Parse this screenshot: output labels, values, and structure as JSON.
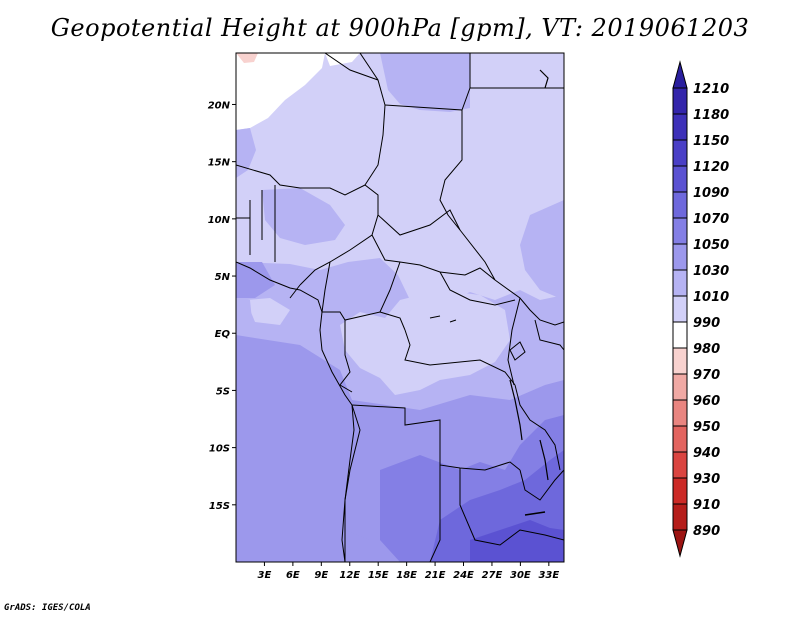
{
  "title": "Geopotential Height at 900hPa [gpm], VT: 2019061203",
  "credit": "GrADS: IGES/COLA",
  "map": {
    "lat_labels": [
      "20N",
      "15N",
      "10N",
      "5N",
      "EQ",
      "5S",
      "10S",
      "15S"
    ],
    "lat_values": [
      20,
      15,
      10,
      5,
      0,
      -5,
      -10,
      -15
    ],
    "lon_labels": [
      "3E",
      "6E",
      "9E",
      "12E",
      "15E",
      "18E",
      "21E",
      "24E",
      "27E",
      "30E",
      "33E"
    ],
    "lon_values": [
      3,
      6,
      9,
      12,
      15,
      18,
      21,
      24,
      27,
      30,
      33
    ],
    "lon_range": [
      0,
      34.6
    ],
    "lat_range": [
      -20,
      24.5
    ]
  },
  "colorbar": {
    "labels": [
      "1210",
      "1180",
      "1150",
      "1120",
      "1090",
      "1070",
      "1050",
      "1030",
      "1010",
      "990",
      "980",
      "970",
      "960",
      "950",
      "940",
      "930",
      "910",
      "890"
    ],
    "colors": [
      "#2a1f9e",
      "#3325ab",
      "#3d30b8",
      "#4a3fc6",
      "#5b52d2",
      "#6e68dc",
      "#847fe5",
      "#9c98ec",
      "#b6b3f3",
      "#d2d0f8",
      "#ffffff",
      "#f8d2cf",
      "#f0a9a4",
      "#e98580",
      "#e2645f",
      "#da4440",
      "#cc2a26",
      "#b51d1a",
      "#9c1412"
    ]
  }
}
